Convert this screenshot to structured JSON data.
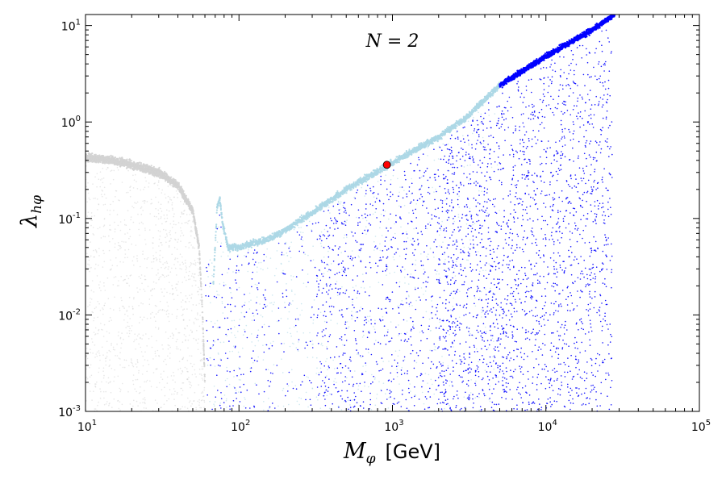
{
  "chart_data": {
    "type": "scatter",
    "xscale": "log",
    "yscale": "log",
    "xlim": [
      10,
      100000
    ],
    "ylim": [
      0.001,
      13
    ],
    "xlabel": {
      "symbol": "M",
      "sub": "φ",
      "unit": "[GeV]"
    },
    "ylabel": {
      "symbol": "λ",
      "sub": "hφ"
    },
    "x_ticks": [
      {
        "value": 10,
        "base": "10",
        "exp": "1"
      },
      {
        "value": 100,
        "base": "10",
        "exp": "2"
      },
      {
        "value": 1000,
        "base": "10",
        "exp": "3"
      },
      {
        "value": 10000,
        "base": "10",
        "exp": "4"
      },
      {
        "value": 100000,
        "base": "10",
        "exp": "5"
      }
    ],
    "y_ticks": [
      {
        "value": 0.001,
        "base": "10",
        "exp": "-3"
      },
      {
        "value": 0.01,
        "base": "10",
        "exp": "-2"
      },
      {
        "value": 0.1,
        "base": "10",
        "exp": "-1"
      },
      {
        "value": 1,
        "base": "10",
        "exp": "0"
      },
      {
        "value": 10,
        "base": "10",
        "exp": "1"
      }
    ],
    "annotation": {
      "text": "N = 2",
      "x": 1000,
      "y": 7
    },
    "grid": false,
    "series": [
      {
        "color": "#d3d3d3",
        "kind": "background-cloud",
        "x_range": [
          10,
          60
        ],
        "y_range": [
          0.001,
          0.45
        ]
      },
      {
        "color": "#d3d3d3",
        "kind": "dense-band",
        "points": [
          [
            10,
            0.43
          ],
          [
            15,
            0.4
          ],
          [
            20,
            0.36
          ],
          [
            30,
            0.3
          ],
          [
            40,
            0.22
          ],
          [
            50,
            0.12
          ],
          [
            55,
            0.05
          ],
          [
            58,
            0.01
          ],
          [
            60,
            0.002
          ]
        ]
      },
      {
        "color": "#add8e6",
        "kind": "dense-band",
        "points": [
          [
            68,
            0.02
          ],
          [
            72,
            0.13
          ],
          [
            75,
            0.16
          ],
          [
            78,
            0.09
          ],
          [
            85,
            0.05
          ],
          [
            100,
            0.05
          ],
          [
            150,
            0.06
          ],
          [
            200,
            0.075
          ],
          [
            500,
            0.2
          ],
          [
            1000,
            0.38
          ],
          [
            2000,
            0.7
          ],
          [
            3000,
            1.1
          ],
          [
            5000,
            2.4
          ]
        ]
      },
      {
        "color": "#0000ff",
        "kind": "dense-band",
        "points": [
          [
            5000,
            2.4
          ],
          [
            10000,
            4.8
          ],
          [
            20000,
            9
          ],
          [
            28000,
            13
          ]
        ]
      },
      {
        "color": "#0000ff",
        "kind": "scatter-fill",
        "x_range": [
          60,
          27000
        ],
        "y_range": [
          0.001,
          "below-band"
        ]
      }
    ],
    "highlight_point": {
      "x": 920,
      "y": 0.36,
      "color": "#ff0000"
    }
  }
}
